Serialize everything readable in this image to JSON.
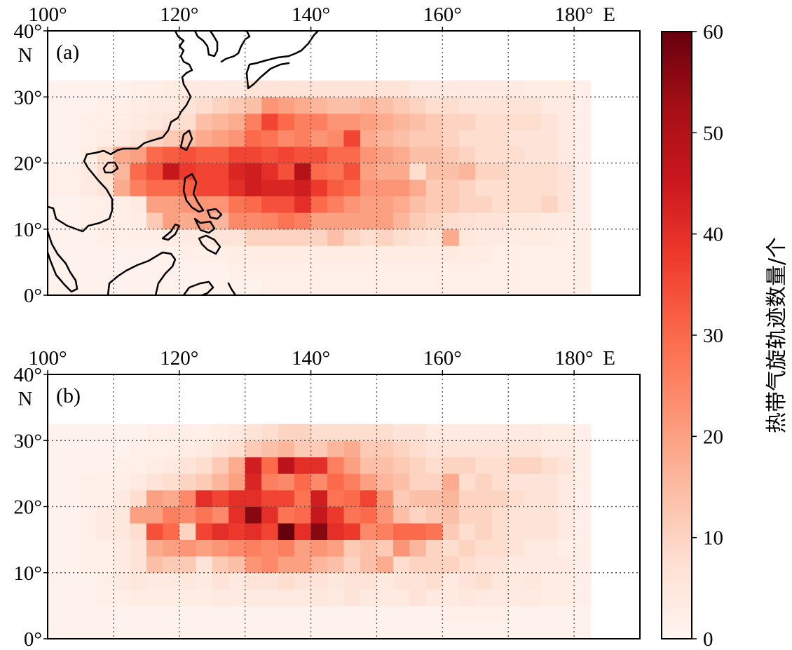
{
  "chart_data": {
    "type": "heatmap",
    "colorbar": {
      "label": "热带气旋轨迹数量/个",
      "range": [
        0,
        60
      ],
      "ticks": [
        0,
        10,
        20,
        30,
        40,
        50,
        60
      ],
      "colors": [
        "#fff5f0",
        "#fee0d2",
        "#fcbba1",
        "#fc9272",
        "#fb6a4a",
        "#ef3b2c",
        "#cb181d",
        "#a50f15",
        "#67000d"
      ]
    },
    "grid": true,
    "lon_range": [
      100,
      190
    ],
    "lat_range": [
      0,
      40
    ],
    "cell_size_deg": [
      2.5,
      2.5
    ],
    "heatmap_extent": {
      "lon": [
        100,
        182.5
      ],
      "lat": [
        0,
        32.5
      ]
    },
    "x_ticks": [
      100,
      120,
      140,
      160,
      180
    ],
    "y_ticks": [
      0,
      10,
      20,
      30,
      40
    ],
    "x_tick_labels": [
      "100°",
      "120°",
      "140°",
      "160°",
      "180°"
    ],
    "y_tick_labels": [
      "0°",
      "10°",
      "20°",
      "30°",
      "40°"
    ],
    "lon_suffix": "E",
    "lat_suffix": "N",
    "panels": [
      {
        "label": "(a)",
        "rows_lat_start_south_to_north": [
          0,
          2.5,
          5,
          7.5,
          10,
          12.5,
          15,
          17.5,
          20,
          22.5,
          25,
          27.5,
          30
        ],
        "values": [
          [
            1,
            1,
            1,
            1,
            1,
            1,
            1,
            1,
            1,
            1,
            1,
            1,
            1,
            2,
            2,
            2,
            2,
            2,
            2,
            2,
            2,
            2,
            2,
            2,
            2,
            2,
            2,
            2,
            2,
            2,
            2,
            2,
            2
          ],
          [
            1,
            1,
            1,
            1,
            1,
            1,
            1,
            1,
            1,
            1,
            1,
            2,
            2,
            2,
            2,
            2,
            2,
            2,
            2,
            2,
            2,
            2,
            2,
            2,
            2,
            2,
            2,
            2,
            2,
            2,
            2,
            2,
            2
          ],
          [
            1,
            1,
            1,
            1,
            1,
            1,
            1,
            1,
            2,
            2,
            2,
            3,
            3,
            3,
            3,
            3,
            3,
            3,
            3,
            3,
            3,
            3,
            3,
            3,
            4,
            3,
            3,
            2,
            2,
            2,
            2,
            2,
            2
          ],
          [
            1,
            1,
            1,
            2,
            2,
            2,
            2,
            3,
            4,
            4,
            6,
            6,
            10,
            10,
            10,
            10,
            10,
            14,
            10,
            8,
            10,
            8,
            6,
            5,
            18,
            5,
            4,
            4,
            3,
            3,
            3,
            2,
            2
          ],
          [
            1,
            1,
            2,
            2,
            2,
            3,
            12,
            20,
            18,
            20,
            16,
            24,
            24,
            25,
            28,
            26,
            20,
            20,
            20,
            20,
            20,
            16,
            12,
            10,
            8,
            7,
            6,
            6,
            5,
            5,
            4,
            4,
            2
          ],
          [
            1,
            1,
            2,
            2,
            2,
            4,
            20,
            20,
            22,
            22,
            22,
            28,
            30,
            34,
            34,
            40,
            30,
            26,
            22,
            20,
            20,
            18,
            14,
            12,
            12,
            10,
            10,
            8,
            8,
            8,
            10,
            6,
            2
          ],
          [
            2,
            2,
            4,
            6,
            18,
            26,
            30,
            30,
            32,
            36,
            36,
            40,
            44,
            42,
            42,
            44,
            38,
            32,
            30,
            22,
            22,
            22,
            18,
            12,
            12,
            10,
            8,
            8,
            8,
            8,
            8,
            6,
            2
          ],
          [
            2,
            2,
            4,
            8,
            16,
            30,
            34,
            46,
            38,
            36,
            36,
            42,
            44,
            40,
            34,
            50,
            30,
            28,
            34,
            20,
            18,
            18,
            8,
            14,
            14,
            16,
            10,
            10,
            8,
            8,
            8,
            6,
            2
          ],
          [
            1,
            1,
            3,
            8,
            18,
            20,
            30,
            32,
            34,
            32,
            32,
            36,
            36,
            34,
            36,
            34,
            34,
            30,
            30,
            22,
            20,
            18,
            14,
            14,
            12,
            10,
            8,
            8,
            8,
            6,
            6,
            4,
            2
          ],
          [
            1,
            1,
            2,
            3,
            4,
            6,
            10,
            12,
            14,
            18,
            20,
            22,
            30,
            28,
            24,
            26,
            22,
            24,
            36,
            18,
            16,
            14,
            12,
            12,
            10,
            8,
            8,
            8,
            6,
            6,
            6,
            4,
            2
          ],
          [
            1,
            1,
            2,
            2,
            3,
            4,
            5,
            6,
            8,
            14,
            16,
            18,
            26,
            36,
            30,
            26,
            26,
            22,
            22,
            20,
            18,
            16,
            14,
            12,
            10,
            10,
            8,
            8,
            8,
            8,
            6,
            4,
            2
          ],
          [
            1,
            1,
            1,
            2,
            2,
            3,
            4,
            4,
            6,
            8,
            10,
            12,
            14,
            22,
            20,
            18,
            16,
            14,
            14,
            16,
            14,
            12,
            10,
            8,
            8,
            6,
            6,
            6,
            6,
            6,
            4,
            4,
            2
          ],
          [
            1,
            1,
            1,
            1,
            1,
            2,
            2,
            3,
            4,
            4,
            4,
            4,
            6,
            6,
            6,
            6,
            6,
            6,
            6,
            6,
            6,
            6,
            4,
            4,
            4,
            4,
            4,
            4,
            4,
            3,
            3,
            3,
            2
          ]
        ]
      },
      {
        "label": "(b)",
        "rows_lat_start_south_to_north": [
          0,
          2.5,
          5,
          7.5,
          10,
          12.5,
          15,
          17.5,
          20,
          22.5,
          25,
          27.5,
          30
        ],
        "values": [
          [
            1,
            1,
            1,
            1,
            1,
            1,
            1,
            1,
            1,
            1,
            1,
            1,
            1,
            1,
            1,
            1,
            1,
            1,
            1,
            1,
            1,
            1,
            1,
            1,
            1,
            1,
            1,
            1,
            1,
            1,
            1,
            1,
            1
          ],
          [
            1,
            1,
            1,
            1,
            1,
            1,
            1,
            1,
            1,
            1,
            1,
            1,
            1,
            1,
            1,
            1,
            1,
            1,
            1,
            1,
            1,
            1,
            1,
            1,
            2,
            2,
            2,
            2,
            1,
            1,
            1,
            1,
            1
          ],
          [
            1,
            1,
            1,
            2,
            2,
            3,
            3,
            3,
            3,
            3,
            4,
            4,
            4,
            4,
            4,
            4,
            5,
            4,
            6,
            4,
            4,
            4,
            6,
            4,
            4,
            5,
            4,
            4,
            4,
            4,
            3,
            3,
            2
          ],
          [
            1,
            1,
            1,
            2,
            4,
            5,
            4,
            4,
            5,
            4,
            6,
            4,
            6,
            6,
            8,
            6,
            6,
            5,
            6,
            6,
            4,
            6,
            6,
            8,
            4,
            6,
            8,
            5,
            4,
            5,
            3,
            3,
            2
          ],
          [
            1,
            1,
            2,
            2,
            4,
            6,
            14,
            12,
            12,
            6,
            12,
            14,
            22,
            24,
            20,
            20,
            16,
            14,
            10,
            14,
            18,
            8,
            10,
            10,
            10,
            8,
            6,
            6,
            4,
            4,
            4,
            4,
            2
          ],
          [
            1,
            1,
            2,
            2,
            4,
            6,
            18,
            20,
            22,
            20,
            22,
            24,
            26,
            24,
            26,
            20,
            22,
            20,
            12,
            14,
            12,
            22,
            16,
            10,
            8,
            10,
            8,
            8,
            6,
            4,
            4,
            2,
            2
          ],
          [
            1,
            1,
            2,
            4,
            5,
            8,
            34,
            30,
            10,
            36,
            40,
            38,
            40,
            36,
            60,
            40,
            56,
            40,
            38,
            24,
            26,
            30,
            30,
            28,
            12,
            8,
            10,
            8,
            6,
            6,
            6,
            4,
            2
          ],
          [
            1,
            1,
            2,
            4,
            5,
            20,
            20,
            26,
            24,
            28,
            24,
            40,
            56,
            40,
            28,
            30,
            46,
            38,
            28,
            30,
            22,
            14,
            10,
            12,
            14,
            10,
            10,
            8,
            6,
            6,
            6,
            4,
            2
          ],
          [
            1,
            1,
            2,
            2,
            4,
            8,
            20,
            18,
            24,
            40,
            36,
            40,
            40,
            36,
            36,
            28,
            44,
            28,
            30,
            36,
            22,
            12,
            14,
            14,
            16,
            10,
            10,
            10,
            8,
            6,
            6,
            4,
            2
          ],
          [
            1,
            1,
            2,
            2,
            2,
            4,
            6,
            8,
            10,
            12,
            16,
            20,
            42,
            26,
            24,
            30,
            24,
            30,
            26,
            20,
            16,
            14,
            10,
            10,
            18,
            8,
            10,
            8,
            6,
            6,
            6,
            4,
            2
          ],
          [
            1,
            1,
            1,
            1,
            2,
            2,
            3,
            4,
            6,
            8,
            12,
            18,
            44,
            30,
            48,
            40,
            40,
            26,
            20,
            14,
            14,
            12,
            10,
            8,
            10,
            10,
            8,
            8,
            10,
            10,
            8,
            6,
            2
          ],
          [
            1,
            1,
            1,
            1,
            1,
            2,
            2,
            2,
            3,
            4,
            6,
            8,
            12,
            14,
            16,
            12,
            12,
            16,
            18,
            12,
            12,
            10,
            8,
            6,
            6,
            6,
            6,
            6,
            6,
            6,
            4,
            4,
            2
          ],
          [
            1,
            1,
            1,
            1,
            1,
            1,
            2,
            2,
            2,
            2,
            3,
            4,
            6,
            8,
            10,
            10,
            8,
            8,
            8,
            8,
            8,
            6,
            6,
            4,
            4,
            4,
            4,
            4,
            4,
            4,
            3,
            3,
            2
          ]
        ]
      }
    ]
  }
}
